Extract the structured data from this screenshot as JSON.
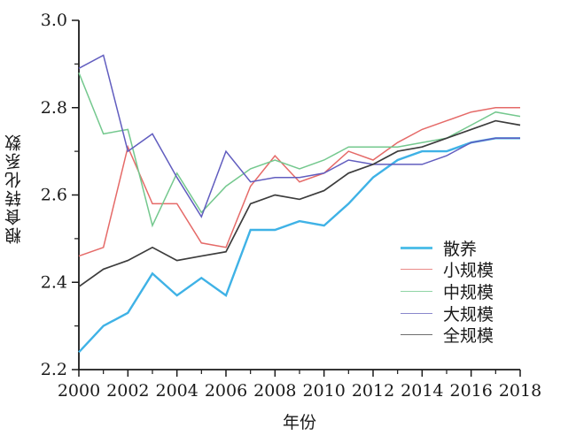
{
  "chart_data": {
    "type": "line",
    "title": "",
    "xlabel": "年份",
    "ylabel": "粮食转化系数",
    "x": [
      2000,
      2001,
      2002,
      2003,
      2004,
      2005,
      2006,
      2007,
      2008,
      2009,
      2010,
      2011,
      2012,
      2013,
      2014,
      2015,
      2016,
      2017,
      2018
    ],
    "xlim": [
      2000,
      2018
    ],
    "ylim": [
      2.2,
      3.0
    ],
    "x_major_ticks": [
      2000,
      2002,
      2004,
      2006,
      2008,
      2010,
      2012,
      2014,
      2016,
      2018
    ],
    "x_minor_ticks": [
      2001,
      2003,
      2005,
      2007,
      2009,
      2011,
      2013,
      2015,
      2017
    ],
    "y_major_ticks": [
      "2.2",
      "2.4",
      "2.6",
      "2.8",
      "3.0"
    ],
    "y_minor_ticks": [
      2.3,
      2.5,
      2.7,
      2.9
    ],
    "grid": false,
    "legend_position": "right-middle",
    "axis_color": "#1a1a1a",
    "series": [
      {
        "name": "散养",
        "color": "#3fb2e6",
        "legend_color": "#52bfe8",
        "width": 2.4,
        "values": [
          2.24,
          2.3,
          2.33,
          2.42,
          2.37,
          2.41,
          2.37,
          2.52,
          2.52,
          2.54,
          2.53,
          2.58,
          2.64,
          2.68,
          2.7,
          2.7,
          2.72,
          2.73,
          2.73
        ]
      },
      {
        "name": "小规模",
        "color": "#e56a68",
        "legend_color": "#ea8a88",
        "width": 1.5,
        "values": [
          2.46,
          2.48,
          2.71,
          2.58,
          2.58,
          2.49,
          2.48,
          2.62,
          2.69,
          2.63,
          2.65,
          2.7,
          2.68,
          2.72,
          2.75,
          2.77,
          2.79,
          2.8,
          2.8
        ]
      },
      {
        "name": "中规模",
        "color": "#74c88e",
        "legend_color": "#8fd4a5",
        "width": 1.5,
        "values": [
          2.88,
          2.74,
          2.75,
          2.53,
          2.65,
          2.56,
          2.62,
          2.66,
          2.68,
          2.66,
          2.68,
          2.71,
          2.71,
          2.71,
          2.72,
          2.73,
          2.76,
          2.79,
          2.78
        ]
      },
      {
        "name": "大规模",
        "color": "#615dbf",
        "legend_color": "#8a87cc",
        "width": 1.5,
        "values": [
          2.89,
          2.92,
          2.7,
          2.74,
          2.64,
          2.55,
          2.7,
          2.63,
          2.64,
          2.64,
          2.65,
          2.68,
          2.67,
          2.67,
          2.67,
          2.69,
          2.72,
          2.73,
          2.73
        ]
      },
      {
        "name": "全规模",
        "color": "#3c3c3c",
        "legend_color": "#6e6e6e",
        "width": 1.7,
        "values": [
          2.39,
          2.43,
          2.45,
          2.48,
          2.45,
          2.46,
          2.47,
          2.58,
          2.6,
          2.59,
          2.61,
          2.65,
          2.67,
          2.7,
          2.71,
          2.73,
          2.75,
          2.77,
          2.76
        ]
      }
    ]
  }
}
